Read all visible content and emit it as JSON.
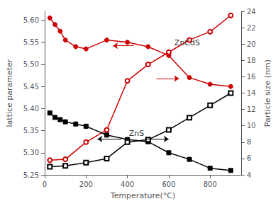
{
  "chart_data": {
    "type": "line",
    "xlabel": "Temperature(°C)",
    "ylabel": "lattice parameter",
    "y2label": "Particle size (nm)",
    "xlim": [
      0,
      950
    ],
    "xticks": [
      0,
      200,
      400,
      600,
      800
    ],
    "ylim": [
      5.25,
      5.62
    ],
    "yticks": [
      5.25,
      {
        "value": 5.3,
        "label": "5.30"
      },
      5.35,
      {
        "value": 5.4,
        "label": "5.40"
      },
      5.45,
      {
        "value": 5.5,
        "label": "5.50"
      },
      5.55,
      {
        "value": 5.6,
        "label": "5.60"
      }
    ],
    "y2lim": [
      4,
      24
    ],
    "y2ticks": [
      4,
      6,
      8,
      10,
      12,
      14,
      16,
      18,
      20,
      22,
      24
    ],
    "grid": false,
    "annotations": [
      "ZnCdS",
      "ZnS"
    ],
    "series": [
      {
        "color": "#cc0000",
        "marker": "circle",
        "axis": "y",
        "x": [
          25,
          50,
          75,
          100,
          150,
          200,
          300,
          400,
          500,
          600,
          700,
          800,
          900
        ],
        "values": [
          5.605,
          5.59,
          5.575,
          5.555,
          5.54,
          5.535,
          5.555,
          5.55,
          5.54,
          5.52,
          5.47,
          5.455,
          5.45
        ]
      },
      {
        "color": "#cc0000",
        "marker": "open-circle",
        "axis": "y2",
        "x": [
          25,
          100,
          200,
          300,
          400,
          500,
          600,
          700,
          800,
          900
        ],
        "values": [
          5.8,
          5.9,
          8.0,
          9.5,
          15.5,
          17.5,
          19.0,
          20.5,
          21.5,
          23.5
        ]
      },
      {
        "color": "#000000",
        "marker": "square",
        "axis": "y",
        "x": [
          25,
          50,
          75,
          100,
          150,
          200,
          300,
          400,
          500,
          600,
          700,
          800,
          900
        ],
        "values": [
          5.39,
          5.38,
          5.375,
          5.37,
          5.365,
          5.36,
          5.34,
          5.33,
          5.325,
          5.3,
          5.285,
          5.265,
          5.26
        ]
      },
      {
        "color": "#000000",
        "marker": "open-square",
        "axis": "y2",
        "x": [
          25,
          100,
          200,
          300,
          400,
          500,
          600,
          700,
          800,
          900
        ],
        "values": [
          5.0,
          5.1,
          5.5,
          6.0,
          8.0,
          8.3,
          9.5,
          11.0,
          12.5,
          14.0
        ]
      }
    ]
  }
}
